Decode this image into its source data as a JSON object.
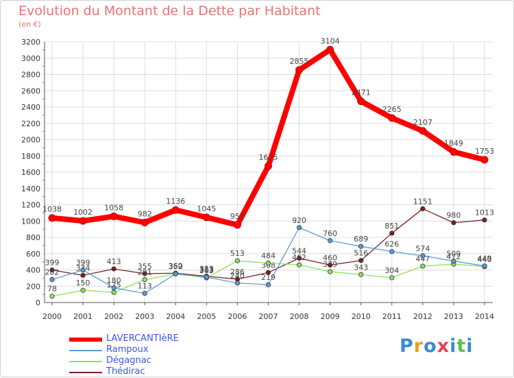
{
  "title": "Evolution du Montant de la Dette par Habitant",
  "subtitle": "(en €)",
  "logo_text": "Proxiti",
  "chart_data": {
    "type": "line",
    "x": [
      2000,
      2001,
      2002,
      2003,
      2004,
      2005,
      2006,
      2007,
      2008,
      2009,
      2010,
      2011,
      2012,
      2013,
      2014
    ],
    "ylim": [
      0,
      3200
    ],
    "yticks": [
      0,
      200,
      400,
      600,
      800,
      1000,
      1200,
      1400,
      1600,
      1800,
      2000,
      2200,
      2400,
      2600,
      2800,
      3000,
      3200
    ],
    "grid": true,
    "legend_position": "bottom-left",
    "series": [
      {
        "name": "LAVERCANTIèRE",
        "color": "#ff0000",
        "values": [
          1038,
          1002,
          1058,
          982,
          1136,
          1045,
          953,
          1675,
          2855,
          3104,
          2471,
          2265,
          2107,
          1849,
          1753
        ]
      },
      {
        "name": "Rampoux",
        "color": "#5b9bd5",
        "values": [
          282,
          399,
          180,
          113,
          352,
          313,
          240,
          219,
          920,
          760,
          689,
          626,
          574,
          509,
          449
        ]
      },
      {
        "name": "Dégagnac",
        "color": "#8ee060",
        "values": [
          78,
          150,
          125,
          281,
          352,
          303,
          513,
          484,
          462,
          379,
          343,
          304,
          447,
          472,
          440
        ]
      },
      {
        "name": "Thédirac",
        "color": "#7b2020",
        "values": [
          399,
          334,
          413,
          355,
          360,
          323,
          286,
          368,
          544,
          460,
          516,
          851,
          1151,
          980,
          1013
        ]
      }
    ]
  }
}
